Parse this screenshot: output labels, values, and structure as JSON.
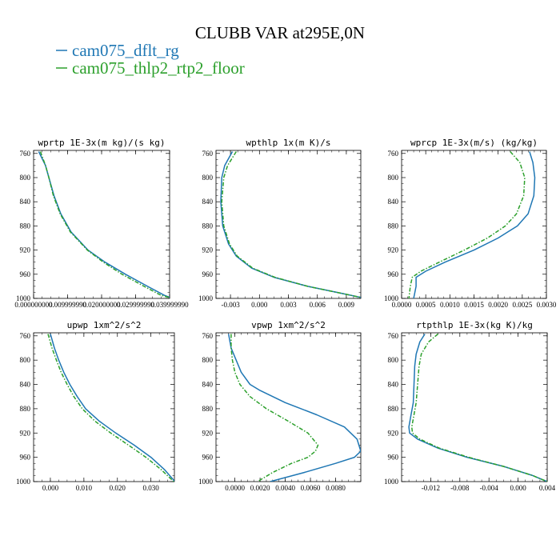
{
  "figure": {
    "title": "CLUBB VAR at295E,0N",
    "legend": [
      {
        "label": "cam075_dflt_rg",
        "color": "#1f77b4",
        "dash": "solid"
      },
      {
        "label": "cam075_thlp2_rtp2_floor",
        "color": "#2ca02c",
        "dash": "dashdot"
      }
    ]
  },
  "chart_data": [
    {
      "type": "line",
      "title": "wprtp  1E-3x(m kg)/(s kg)",
      "xlim": [
        0.0,
        0.04
      ],
      "xticks": [
        "0.000000000",
        "0.009999990",
        "0.020000000",
        "0.029999990",
        "0.039999990"
      ],
      "xtick_values": [
        0.0,
        0.01,
        0.02,
        0.03,
        0.04
      ],
      "ylim": [
        1000,
        755
      ],
      "yticks": [
        760,
        800,
        840,
        880,
        920,
        960,
        1000
      ],
      "series": [
        {
          "name": "cam075_dflt_rg",
          "y": [
            757,
            780,
            800,
            830,
            860,
            890,
            920,
            940,
            960,
            980,
            995,
            1000
          ],
          "x": [
            0.0015,
            0.0035,
            0.0045,
            0.006,
            0.008,
            0.011,
            0.016,
            0.021,
            0.027,
            0.0335,
            0.0385,
            0.041
          ]
        },
        {
          "name": "cam075_thlp2_rtp2_floor",
          "y": [
            757,
            780,
            800,
            830,
            860,
            890,
            920,
            940,
            960,
            980,
            995,
            1000
          ],
          "x": [
            0.002,
            0.0035,
            0.0045,
            0.0058,
            0.0078,
            0.0108,
            0.0158,
            0.0205,
            0.026,
            0.0325,
            0.0375,
            0.041
          ]
        }
      ]
    },
    {
      "type": "line",
      "title": "wpthlp  1x(m K)/s",
      "xlim": [
        -0.0045,
        0.0105
      ],
      "xticks": [
        "-0.003",
        "0.000",
        "0.003",
        "0.006",
        "0.009"
      ],
      "xtick_values": [
        -0.003,
        0.0,
        0.003,
        0.006,
        0.009
      ],
      "ylim": [
        1000,
        755
      ],
      "yticks": [
        760,
        800,
        840,
        880,
        920,
        960,
        1000
      ],
      "series": [
        {
          "name": "cam075_dflt_rg",
          "y": [
            757,
            780,
            800,
            840,
            880,
            910,
            930,
            950,
            965,
            980,
            990,
            1000
          ],
          "x": [
            -0.0028,
            -0.0036,
            -0.0039,
            -0.004,
            -0.0038,
            -0.0032,
            -0.0024,
            -0.0008,
            0.0015,
            0.005,
            0.008,
            0.011
          ]
        },
        {
          "name": "cam075_thlp2_rtp2_floor",
          "y": [
            757,
            780,
            800,
            840,
            880,
            910,
            930,
            950,
            965,
            980,
            990,
            1000
          ],
          "x": [
            -0.0024,
            -0.0033,
            -0.0037,
            -0.0039,
            -0.0037,
            -0.0031,
            -0.0023,
            -0.0007,
            0.0016,
            0.005,
            0.008,
            0.011
          ]
        }
      ]
    },
    {
      "type": "line",
      "title": "wprcp  1E-3x(m/s) (kg/kg)",
      "xlim": [
        0.0,
        0.003
      ],
      "xticks": [
        "0.0000",
        "0.0005",
        "0.0010",
        "0.0015",
        "0.0020",
        "0.0025",
        "0.0030"
      ],
      "xtick_values": [
        0.0,
        0.0005,
        0.001,
        0.0015,
        0.002,
        0.0025,
        0.003
      ],
      "ylim": [
        1000,
        755
      ],
      "yticks": [
        760,
        800,
        840,
        880,
        920,
        960,
        1000
      ],
      "series": [
        {
          "name": "cam075_dflt_rg",
          "y": [
            757,
            775,
            800,
            830,
            860,
            880,
            900,
            920,
            940,
            955,
            965,
            980,
            1000
          ],
          "x": [
            0.00265,
            0.00272,
            0.00276,
            0.00274,
            0.00262,
            0.0024,
            0.002,
            0.0015,
            0.0009,
            0.0005,
            0.0003,
            0.0003,
            0.00025
          ]
        },
        {
          "name": "cam075_thlp2_rtp2_floor",
          "y": [
            757,
            775,
            800,
            830,
            860,
            880,
            900,
            920,
            940,
            955,
            965,
            980,
            1000
          ],
          "x": [
            0.00225,
            0.00245,
            0.00255,
            0.00253,
            0.00238,
            0.00215,
            0.00178,
            0.0013,
            0.00078,
            0.0004,
            0.00022,
            0.00018,
            0.00015
          ]
        }
      ]
    },
    {
      "type": "line",
      "title": "upwp  1xm^2/s^2",
      "xlim": [
        -0.005,
        0.037
      ],
      "xticks": [
        "0.000",
        "0.010",
        "0.020",
        "0.030"
      ],
      "xtick_values": [
        0.0,
        0.01,
        0.02,
        0.03
      ],
      "ylim": [
        1000,
        755
      ],
      "yticks": [
        760,
        800,
        840,
        880,
        920,
        960,
        1000
      ],
      "series": [
        {
          "name": "cam075_dflt_rg",
          "y": [
            757,
            780,
            800,
            820,
            840,
            860,
            880,
            900,
            920,
            940,
            960,
            980,
            1000
          ],
          "x": [
            0.0,
            0.0012,
            0.0025,
            0.004,
            0.0058,
            0.008,
            0.0105,
            0.0145,
            0.0195,
            0.025,
            0.03,
            0.034,
            0.0372
          ]
        },
        {
          "name": "cam075_thlp2_rtp2_floor",
          "y": [
            757,
            780,
            800,
            820,
            840,
            860,
            880,
            900,
            920,
            940,
            960,
            980,
            1000
          ],
          "x": [
            -0.0007,
            0.0005,
            0.0018,
            0.0032,
            0.005,
            0.007,
            0.0095,
            0.0132,
            0.018,
            0.0233,
            0.0285,
            0.033,
            0.0368
          ]
        }
      ]
    },
    {
      "type": "line",
      "title": "vpwp  1xm^2/s^2",
      "xlim": [
        -0.0015,
        0.01
      ],
      "xticks": [
        "0.0000",
        "0.0020",
        "0.0040",
        "0.0060",
        "0.0080"
      ],
      "xtick_values": [
        0.0,
        0.002,
        0.004,
        0.006,
        0.008
      ],
      "ylim": [
        1000,
        755
      ],
      "yticks": [
        760,
        800,
        840,
        880,
        920,
        960,
        1000
      ],
      "series": [
        {
          "name": "cam075_dflt_rg",
          "y": [
            757,
            780,
            800,
            820,
            840,
            850,
            870,
            890,
            910,
            930,
            950,
            960,
            970,
            985,
            1000
          ],
          "x": [
            -0.0005,
            -0.0003,
            0.0001,
            0.0005,
            0.0012,
            0.002,
            0.004,
            0.0065,
            0.0087,
            0.0097,
            0.01,
            0.0095,
            0.008,
            0.0055,
            0.0028
          ]
        },
        {
          "name": "cam075_thlp2_rtp2_floor",
          "y": [
            757,
            780,
            800,
            820,
            840,
            860,
            880,
            900,
            920,
            940,
            950,
            960,
            970,
            985,
            1000
          ],
          "x": [
            -0.0003,
            -0.0003,
            -0.0002,
            0.0,
            0.0004,
            0.0012,
            0.0025,
            0.0042,
            0.0058,
            0.0066,
            0.0064,
            0.0058,
            0.0045,
            0.003,
            0.0018
          ]
        }
      ]
    },
    {
      "type": "line",
      "title": "rtpthlp  1E-3x(kg K)/kg",
      "xlim": [
        -0.016,
        0.004
      ],
      "xticks": [
        "-0.012",
        "-0.008",
        "-0.004",
        "0.000",
        "0.004"
      ],
      "xtick_values": [
        -0.012,
        -0.008,
        -0.004,
        0.0,
        0.004
      ],
      "ylim": [
        1000,
        755
      ],
      "yticks": [
        760,
        800,
        840,
        880,
        920,
        960,
        1000
      ],
      "series": [
        {
          "name": "cam075_dflt_rg",
          "y": [
            757,
            770,
            790,
            810,
            840,
            870,
            890,
            910,
            920,
            930,
            945,
            960,
            975,
            990,
            1000
          ],
          "x": [
            -0.0128,
            -0.0135,
            -0.014,
            -0.0142,
            -0.0143,
            -0.0144,
            -0.0147,
            -0.015,
            -0.0149,
            -0.0138,
            -0.011,
            -0.007,
            -0.002,
            0.002,
            0.004
          ]
        },
        {
          "name": "cam075_thlp2_rtp2_floor",
          "y": [
            757,
            770,
            790,
            810,
            840,
            870,
            890,
            910,
            920,
            930,
            945,
            960,
            975,
            990,
            1000
          ],
          "x": [
            -0.011,
            -0.0123,
            -0.0133,
            -0.0136,
            -0.0138,
            -0.014,
            -0.0143,
            -0.0146,
            -0.0145,
            -0.0135,
            -0.0108,
            -0.0068,
            -0.002,
            0.002,
            0.004
          ]
        }
      ]
    }
  ]
}
